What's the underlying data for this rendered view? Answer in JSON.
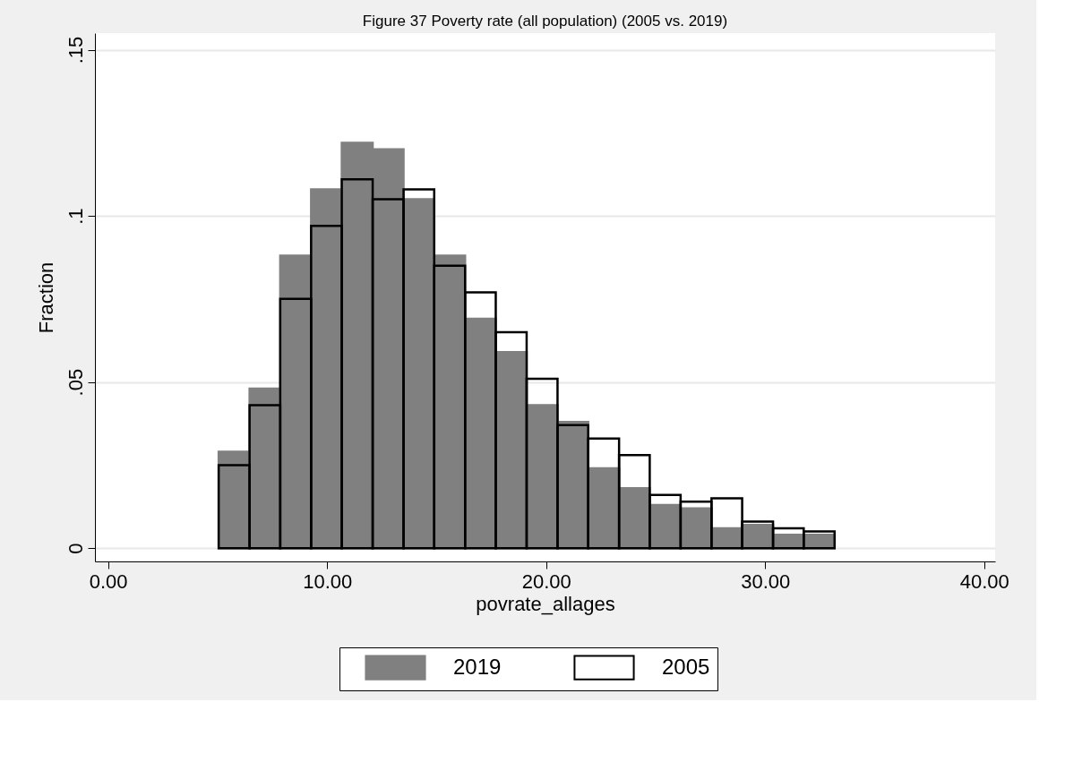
{
  "chart_data": {
    "type": "histogram",
    "title": "Figure 37 Poverty rate (all population) (2005 vs. 2019)",
    "xlabel": "povrate_allages",
    "ylabel": "Fraction",
    "bins": [
      5.05,
      6.46,
      7.86,
      9.27,
      10.67,
      12.08,
      13.49,
      14.89,
      16.3,
      17.7,
      19.11,
      20.52,
      21.92,
      23.33,
      24.73,
      26.14,
      27.55,
      28.95,
      30.36,
      31.76,
      33.17
    ],
    "series": [
      {
        "name": "2019",
        "color": "#808080",
        "values": [
          0.029,
          0.048,
          0.088,
          0.108,
          0.122,
          0.12,
          0.105,
          0.088,
          0.069,
          0.059,
          0.043,
          0.038,
          0.024,
          0.018,
          0.013,
          0.012,
          0.006,
          0.007,
          0.004,
          0.004
        ]
      },
      {
        "name": "2005",
        "color": "#000000",
        "values": [
          0.025,
          0.043,
          0.075,
          0.097,
          0.111,
          0.105,
          0.108,
          0.085,
          0.077,
          0.065,
          0.051,
          0.037,
          0.033,
          0.028,
          0.016,
          0.014,
          0.015,
          0.008,
          0.006,
          0.005
        ]
      }
    ],
    "xlim": [
      -0.6,
      40.5
    ],
    "ylim": [
      -0.004,
      0.155
    ],
    "xticks": [
      {
        "value": 0,
        "label": "0.00"
      },
      {
        "value": 10,
        "label": "10.00"
      },
      {
        "value": 20,
        "label": "20.00"
      },
      {
        "value": 30,
        "label": "30.00"
      },
      {
        "value": 40,
        "label": "40.00"
      }
    ],
    "yticks": [
      0,
      {
        "value": 0.05,
        "label": ".05"
      },
      {
        "value": 0.1,
        "label": ".1"
      },
      {
        "value": 0.15,
        "label": ".15"
      }
    ],
    "grid": "y",
    "legend": "bottom"
  }
}
